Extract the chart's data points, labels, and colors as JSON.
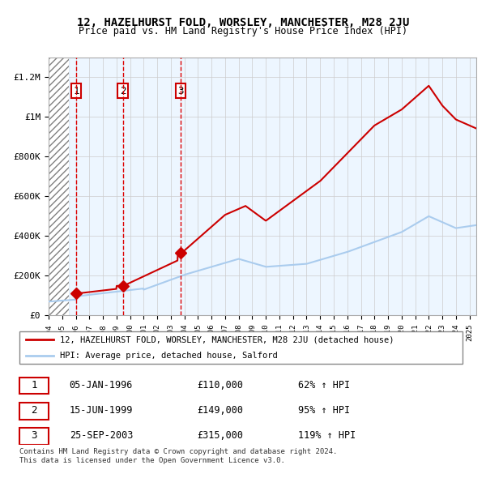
{
  "title": "12, HAZELHURST FOLD, WORSLEY, MANCHESTER, M28 2JU",
  "subtitle": "Price paid vs. HM Land Registry's House Price Index (HPI)",
  "xlabel": "",
  "ylabel": "",
  "ylim": [
    0,
    1300000
  ],
  "yticks": [
    0,
    200000,
    400000,
    600000,
    800000,
    1000000,
    1200000
  ],
  "ytick_labels": [
    "£0",
    "£200K",
    "£400K",
    "£600K",
    "£800K",
    "£1M",
    "£1.2M"
  ],
  "hpi_color": "#aaccee",
  "price_color": "#cc0000",
  "vline_color": "#dd0000",
  "purchases": [
    {
      "date_num": 1996.03,
      "price": 110000,
      "label": "1"
    },
    {
      "date_num": 1999.46,
      "price": 149000,
      "label": "2"
    },
    {
      "date_num": 2003.73,
      "price": 315000,
      "label": "3"
    }
  ],
  "table_rows": [
    {
      "label": "1",
      "date": "05-JAN-1996",
      "price": "£110,000",
      "pct": "62% ↑ HPI"
    },
    {
      "label": "2",
      "date": "15-JUN-1999",
      "price": "£149,000",
      "pct": "95% ↑ HPI"
    },
    {
      "label": "3",
      "date": "25-SEP-2003",
      "price": "£315,000",
      "pct": "119% ↑ HPI"
    }
  ],
  "legend_entries": [
    "12, HAZELHURST FOLD, WORSLEY, MANCHESTER, M28 2JU (detached house)",
    "HPI: Average price, detached house, Salford"
  ],
  "footer": "Contains HM Land Registry data © Crown copyright and database right 2024.\nThis data is licensed under the Open Government Licence v3.0.",
  "hatch_end_year": 1995.5,
  "xmin": 1994.0,
  "xmax": 2025.5,
  "xticks": [
    1994,
    1995,
    1996,
    1997,
    1998,
    1999,
    2000,
    2001,
    2002,
    2003,
    2004,
    2005,
    2006,
    2007,
    2008,
    2009,
    2010,
    2011,
    2012,
    2013,
    2014,
    2015,
    2016,
    2017,
    2018,
    2019,
    2020,
    2021,
    2022,
    2023,
    2024,
    2025
  ]
}
